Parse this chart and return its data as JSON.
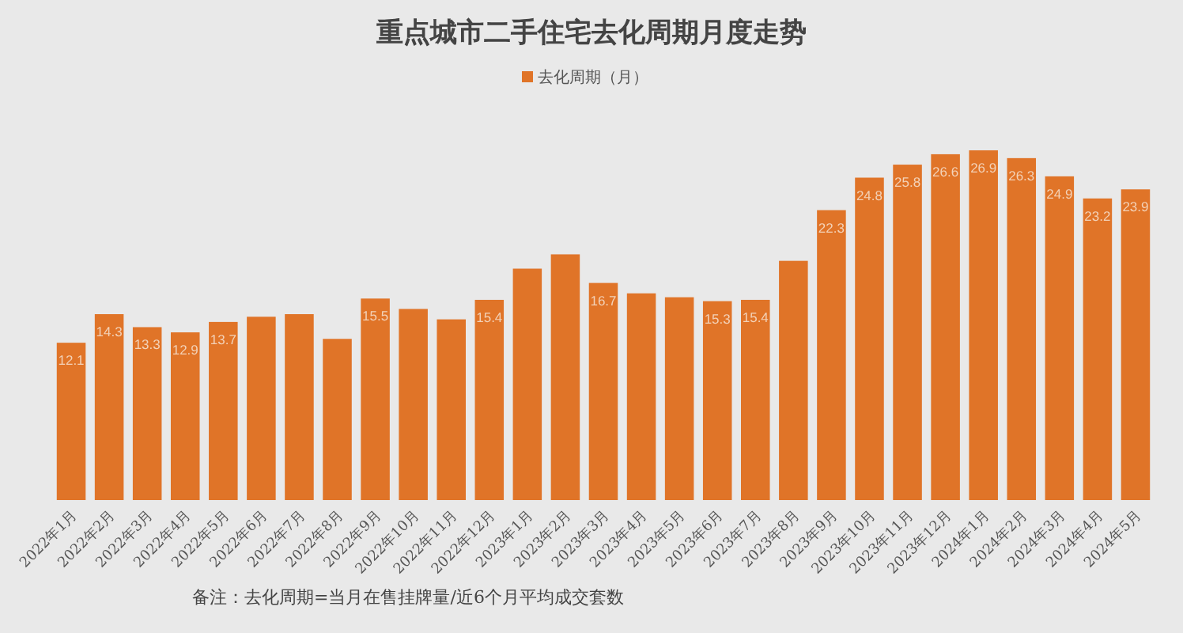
{
  "chart_data": {
    "type": "bar",
    "title": "重点城市二手住宅去化周期月度走势",
    "legend": "top",
    "categories": [
      "2022年1月",
      "2022年2月",
      "2022年3月",
      "2022年4月",
      "2022年5月",
      "2022年6月",
      "2022年7月",
      "2022年8月",
      "2022年9月",
      "2022年10月",
      "2022年11月",
      "2022年12月",
      "2023年1月",
      "2023年2月",
      "2023年3月",
      "2023年4月",
      "2023年5月",
      "2023年6月",
      "2023年7月",
      "2023年8月",
      "2023年9月",
      "2023年10月",
      "2023年11月",
      "2023年12月",
      "2024年1月",
      "2024年2月",
      "2024年3月",
      "2024年4月",
      "2024年5月"
    ],
    "series": [
      {
        "name": "去化周期（月）",
        "color": "#e07428",
        "values": [
          12.1,
          14.3,
          13.3,
          12.9,
          13.7,
          14.1,
          14.3,
          12.4,
          15.5,
          14.7,
          13.9,
          15.4,
          17.8,
          18.9,
          16.7,
          15.9,
          15.6,
          15.3,
          15.4,
          18.4,
          22.3,
          24.8,
          25.8,
          26.6,
          26.9,
          26.3,
          24.9,
          23.2,
          23.9
        ],
        "value_labels": [
          "12.1",
          "14.3",
          "13.3",
          "12.9",
          "13.7",
          null,
          null,
          null,
          "15.5",
          null,
          null,
          "15.4",
          null,
          null,
          "16.7",
          null,
          null,
          "15.3",
          "15.4",
          null,
          "22.3",
          "24.8",
          "25.8",
          "26.6",
          "26.9",
          "26.3",
          "24.9",
          "23.2",
          "23.9"
        ]
      }
    ],
    "annotations": [
      "备注：去化周期=当月在售挂牌量/近6个月平均成交套数"
    ]
  }
}
